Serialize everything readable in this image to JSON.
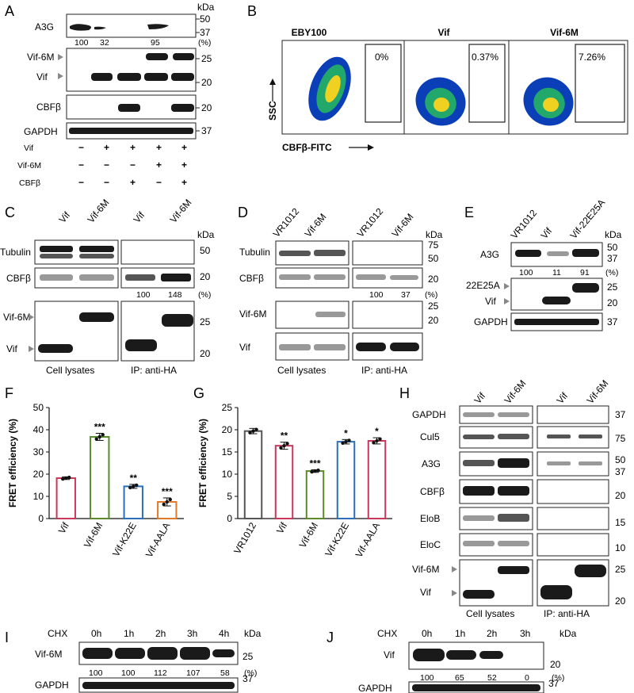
{
  "panels": {
    "A": {
      "label": "A",
      "kda": "kDa",
      "rows": [
        "A3G",
        "Vif-6M",
        "Vif",
        "CBFβ",
        "GAPDH"
      ],
      "mw": [
        "50",
        "37",
        "25",
        "20",
        "20",
        "37"
      ],
      "quant": [
        "100",
        "32",
        "95"
      ],
      "pct": "(%)",
      "cond_rows": [
        {
          "name": "Vif",
          "signs": [
            "−",
            "+",
            "+",
            "+",
            "+"
          ]
        },
        {
          "name": "Vif-6M",
          "signs": [
            "−",
            "−",
            "−",
            "+",
            "+"
          ]
        },
        {
          "name": "CBFβ",
          "signs": [
            "−",
            "−",
            "+",
            "−",
            "+"
          ]
        }
      ]
    },
    "B": {
      "label": "B",
      "titles": [
        "EBY100",
        "Vif",
        "Vif-6M"
      ],
      "percents": [
        "0%",
        "0.37%",
        "7.26%"
      ],
      "ylabel": "SSC",
      "xlabel": "CBFβ-FITC"
    },
    "C": {
      "label": "C",
      "cols": [
        "Vif",
        "Vif-6M",
        "Vif",
        "Vif-6M"
      ],
      "kda": "kDa",
      "rows": [
        "Tubulin",
        "CBFβ",
        "Vif-6M",
        "Vif"
      ],
      "mw": [
        "50",
        "20",
        "25",
        "20"
      ],
      "quant": [
        "100",
        "148"
      ],
      "pct": "(%)",
      "foot": [
        "Cell lysates",
        "IP:  anti-HA"
      ]
    },
    "D": {
      "label": "D",
      "cols": [
        "VR1012",
        "Vif-6M",
        "VR1012",
        "Vif-6M"
      ],
      "kda": "kDa",
      "rows": [
        "Tubulin",
        "CBFβ",
        "Vif-6M",
        "Vif"
      ],
      "mw": [
        "75",
        "50",
        "20",
        "25",
        "20"
      ],
      "quant": [
        "100",
        "37"
      ],
      "pct": "(%)",
      "foot": [
        "Cell lysates",
        "IP:  anti-HA"
      ]
    },
    "E": {
      "label": "E",
      "cols": [
        "VR1012",
        "Vif",
        "Vif-22E25A"
      ],
      "kda": "kDa",
      "rows": [
        "A3G",
        "22E25A",
        "Vif",
        "GAPDH"
      ],
      "mw": [
        "50",
        "37",
        "25",
        "20",
        "37"
      ],
      "quant": [
        "100",
        "11",
        "91"
      ],
      "pct": "(%)"
    },
    "H": {
      "label": "H",
      "cols": [
        "Vif",
        "Vif-6M",
        "Vif",
        "Vif-6M"
      ],
      "rows": [
        "GAPDH",
        "Cul5",
        "A3G",
        "CBFβ",
        "EloB",
        "EloC",
        "Vif-6M",
        "Vif"
      ],
      "mw": [
        "37",
        "75",
        "50",
        "37",
        "20",
        "15",
        "10",
        "25",
        "20"
      ],
      "foot": [
        "Cell lysates",
        "IP:  anti-HA"
      ]
    },
    "I": {
      "label": "I",
      "chx": "CHX",
      "times": [
        "0h",
        "1h",
        "2h",
        "3h",
        "4h"
      ],
      "kda": "kDa",
      "rows": [
        "Vif-6M",
        "GAPDH"
      ],
      "mw": [
        "25",
        "37"
      ],
      "quant": [
        "100",
        "100",
        "112",
        "107",
        "58"
      ],
      "pct": "(%)"
    },
    "J": {
      "label": "J",
      "chx": "CHX",
      "times": [
        "0h",
        "1h",
        "2h",
        "3h"
      ],
      "kda": "kDa",
      "rows": [
        "Vif",
        "GAPDH"
      ],
      "mw": [
        "20",
        "37"
      ],
      "quant": [
        "100",
        "65",
        "52",
        "0"
      ],
      "pct": "(%)"
    }
  },
  "chart_data": [
    {
      "panel": "F",
      "type": "bar",
      "title": "",
      "ylabel": "FRET efficiency (%)",
      "xlabel": "",
      "ylim": [
        0,
        50
      ],
      "yticks": [
        "0",
        "10",
        "20",
        "30",
        "40",
        "50"
      ],
      "categories": [
        "Vif",
        "Vif-6M",
        "Vif-K22E",
        "Vif-AALA"
      ],
      "values": [
        18.2,
        36.8,
        14.5,
        7.5
      ],
      "errors": [
        0.6,
        1.6,
        0.9,
        1.8
      ],
      "significance": [
        "",
        "***",
        "**",
        "***"
      ],
      "colors": [
        "#c8385a",
        "#5a8a2a",
        "#2a6fb8",
        "#e07a2a"
      ]
    },
    {
      "panel": "G",
      "type": "bar",
      "title": "",
      "ylabel": "FRET efficiency (%)",
      "xlabel": "",
      "ylim": [
        0,
        25
      ],
      "yticks": [
        "0",
        "5",
        "10",
        "15",
        "20",
        "25"
      ],
      "categories": [
        "VR1012",
        "Vif",
        "Vif-6M",
        "Vif-K22E",
        "Vif-AALA"
      ],
      "values": [
        19.7,
        16.4,
        10.7,
        17.3,
        17.5
      ],
      "errors": [
        0.6,
        0.8,
        0.3,
        0.5,
        0.7
      ],
      "significance": [
        "",
        "**",
        "***",
        "*",
        "*"
      ],
      "colors": [
        "#555555",
        "#c8385a",
        "#5a8a2a",
        "#2a6fb8",
        "#c8385a"
      ]
    }
  ]
}
